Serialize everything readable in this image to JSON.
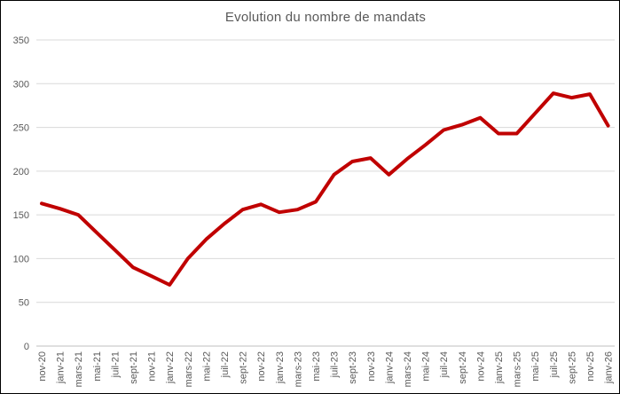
{
  "window": {
    "background_color": "#ffffff",
    "border_color": "#000000"
  },
  "chart_data": {
    "type": "line",
    "title": "Evolution du nombre de mandats",
    "categories": [
      "nov-20",
      "janv-21",
      "mars-21",
      "mai-21",
      "juil-21",
      "sept-21",
      "nov-21",
      "janv-22",
      "mars-22",
      "mai-22",
      "juil-22",
      "sept-22",
      "nov-22",
      "janv-23",
      "mars-23",
      "mai-23",
      "juil-23",
      "sept-23",
      "nov-23",
      "janv-24",
      "mars-24",
      "mai-24",
      "juil-24",
      "sept-24",
      "nov-24",
      "janv-25",
      "mars-25",
      "mai-25",
      "juil-25",
      "sept-25",
      "nov-25",
      "janv-26"
    ],
    "values": [
      163,
      157,
      150,
      130,
      110,
      90,
      80,
      70,
      100,
      122,
      140,
      156,
      162,
      153,
      156,
      165,
      196,
      211,
      215,
      196,
      214,
      230,
      247,
      253,
      261,
      243,
      243,
      266,
      289,
      284,
      288,
      252
    ],
    "xlabel": "",
    "ylabel": "",
    "ylim": [
      0,
      350
    ],
    "ytick_step": 50,
    "x_label_rotation_deg": 90,
    "grid": "horizontal",
    "legend": "none",
    "line_color": "#C00000",
    "line_width": 4,
    "gridline_color": "#D9D9D9",
    "axis_line_color": "#BFBFBF",
    "tick_label_color": "#595959",
    "title_color": "#595959"
  }
}
